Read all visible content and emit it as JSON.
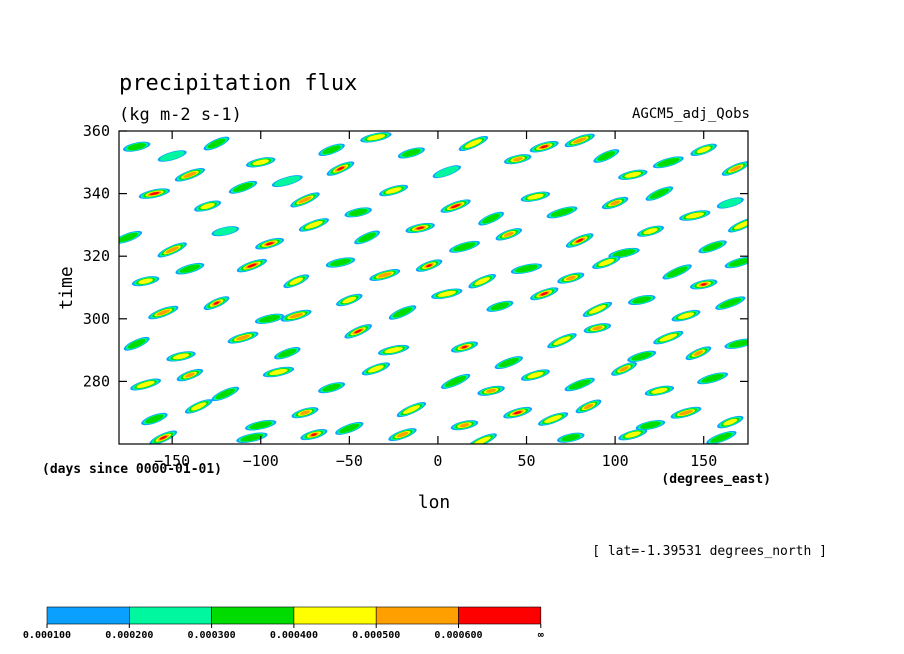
{
  "chart_data": {
    "type": "heatmap",
    "title": "precipitation flux",
    "units": "(kg m-2 s-1)",
    "dataset": "AGCM5_adj_Qobs",
    "xlabel": "lon",
    "ylabel": "time",
    "x_units": "(degrees_east)",
    "y_units": "(days since 0000-01-01)",
    "xlim": [
      -180,
      175
    ],
    "ylim": [
      260,
      360
    ],
    "x_ticks": [
      {
        "value": -150,
        "label": "−150"
      },
      {
        "value": -100,
        "label": "−100"
      },
      {
        "value": -50,
        "label": "−50"
      },
      {
        "value": 0,
        "label": "0"
      },
      {
        "value": 50,
        "label": "50"
      },
      {
        "value": 100,
        "label": "100"
      },
      {
        "value": 150,
        "label": "150"
      }
    ],
    "y_ticks": [
      {
        "value": 280,
        "label": "280"
      },
      {
        "value": 300,
        "label": "300"
      },
      {
        "value": 320,
        "label": "320"
      },
      {
        "value": 340,
        "label": "340"
      },
      {
        "value": 360,
        "label": "360"
      }
    ],
    "annotation": "[ lat=-1.39531 degrees_north ]",
    "levels": [
      {
        "label": "0.000100",
        "color": "#0aa0ff"
      },
      {
        "label": "0.000200",
        "color": "#00f7a0"
      },
      {
        "label": "0.000300",
        "color": "#00dc00"
      },
      {
        "label": "0.000400",
        "color": "#ffff00"
      },
      {
        "label": "0.000500",
        "color": "#ffa000"
      },
      {
        "label": "0.000600",
        "color": "#ff0000"
      },
      {
        "label": "∞",
        "color": ""
      }
    ],
    "blobs": [
      {
        "lon": -170,
        "day": 355,
        "level": 2
      },
      {
        "lon": -150,
        "day": 352,
        "level": 1
      },
      {
        "lon": -140,
        "day": 346,
        "level": 4
      },
      {
        "lon": -125,
        "day": 356,
        "level": 2
      },
      {
        "lon": -100,
        "day": 350,
        "level": 3
      },
      {
        "lon": -85,
        "day": 344,
        "level": 1
      },
      {
        "lon": -60,
        "day": 354,
        "level": 2
      },
      {
        "lon": -55,
        "day": 348,
        "level": 5
      },
      {
        "lon": -35,
        "day": 358,
        "level": 3
      },
      {
        "lon": -15,
        "day": 353,
        "level": 2
      },
      {
        "lon": 5,
        "day": 347,
        "level": 1
      },
      {
        "lon": 20,
        "day": 356,
        "level": 3
      },
      {
        "lon": 45,
        "day": 351,
        "level": 4
      },
      {
        "lon": 60,
        "day": 355,
        "level": 5
      },
      {
        "lon": 80,
        "day": 357,
        "level": 4
      },
      {
        "lon": 95,
        "day": 352,
        "level": 2
      },
      {
        "lon": 110,
        "day": 346,
        "level": 3
      },
      {
        "lon": 130,
        "day": 350,
        "level": 2
      },
      {
        "lon": 150,
        "day": 354,
        "level": 3
      },
      {
        "lon": 168,
        "day": 348,
        "level": 4
      },
      {
        "lon": -160,
        "day": 340,
        "level": 5
      },
      {
        "lon": -130,
        "day": 336,
        "level": 3
      },
      {
        "lon": -110,
        "day": 342,
        "level": 2
      },
      {
        "lon": -75,
        "day": 338,
        "level": 4
      },
      {
        "lon": -45,
        "day": 334,
        "level": 2
      },
      {
        "lon": -25,
        "day": 341,
        "level": 3
      },
      {
        "lon": 10,
        "day": 336,
        "level": 5
      },
      {
        "lon": 30,
        "day": 332,
        "level": 2
      },
      {
        "lon": 55,
        "day": 339,
        "level": 3
      },
      {
        "lon": 70,
        "day": 334,
        "level": 2
      },
      {
        "lon": 100,
        "day": 337,
        "level": 4
      },
      {
        "lon": 125,
        "day": 340,
        "level": 2
      },
      {
        "lon": 145,
        "day": 333,
        "level": 3
      },
      {
        "lon": 165,
        "day": 337,
        "level": 1
      },
      {
        "lon": -175,
        "day": 326,
        "level": 2
      },
      {
        "lon": -150,
        "day": 322,
        "level": 4
      },
      {
        "lon": -120,
        "day": 328,
        "level": 1
      },
      {
        "lon": -95,
        "day": 324,
        "level": 5
      },
      {
        "lon": -70,
        "day": 330,
        "level": 3
      },
      {
        "lon": -40,
        "day": 326,
        "level": 2
      },
      {
        "lon": -10,
        "day": 329,
        "level": 5
      },
      {
        "lon": 15,
        "day": 323,
        "level": 2
      },
      {
        "lon": 40,
        "day": 327,
        "level": 4
      },
      {
        "lon": 80,
        "day": 325,
        "level": 5
      },
      {
        "lon": 105,
        "day": 321,
        "level": 2
      },
      {
        "lon": 120,
        "day": 328,
        "level": 3
      },
      {
        "lon": 155,
        "day": 323,
        "level": 2
      },
      {
        "lon": 172,
        "day": 330,
        "level": 3
      },
      {
        "lon": -165,
        "day": 312,
        "level": 3
      },
      {
        "lon": -140,
        "day": 316,
        "level": 2
      },
      {
        "lon": -105,
        "day": 317,
        "level": 5
      },
      {
        "lon": -80,
        "day": 312,
        "level": 3
      },
      {
        "lon": -55,
        "day": 318,
        "level": 2
      },
      {
        "lon": -30,
        "day": 314,
        "level": 4
      },
      {
        "lon": -5,
        "day": 317,
        "level": 5
      },
      {
        "lon": 25,
        "day": 312,
        "level": 3
      },
      {
        "lon": 50,
        "day": 316,
        "level": 2
      },
      {
        "lon": 75,
        "day": 313,
        "level": 4
      },
      {
        "lon": 95,
        "day": 318,
        "level": 3
      },
      {
        "lon": 135,
        "day": 315,
        "level": 2
      },
      {
        "lon": 150,
        "day": 311,
        "level": 5
      },
      {
        "lon": 170,
        "day": 318,
        "level": 2
      },
      {
        "lon": -155,
        "day": 302,
        "level": 4
      },
      {
        "lon": -125,
        "day": 305,
        "level": 5
      },
      {
        "lon": -95,
        "day": 300,
        "level": 2
      },
      {
        "lon": -80,
        "day": 301,
        "level": 4
      },
      {
        "lon": -50,
        "day": 306,
        "level": 3
      },
      {
        "lon": -20,
        "day": 302,
        "level": 2
      },
      {
        "lon": 5,
        "day": 308,
        "level": 3
      },
      {
        "lon": 35,
        "day": 304,
        "level": 2
      },
      {
        "lon": 60,
        "day": 308,
        "level": 5
      },
      {
        "lon": 90,
        "day": 303,
        "level": 3
      },
      {
        "lon": 115,
        "day": 306,
        "level": 2
      },
      {
        "lon": 140,
        "day": 301,
        "level": 3
      },
      {
        "lon": 165,
        "day": 305,
        "level": 2
      },
      {
        "lon": -170,
        "day": 292,
        "level": 2
      },
      {
        "lon": -145,
        "day": 288,
        "level": 3
      },
      {
        "lon": -110,
        "day": 294,
        "level": 4
      },
      {
        "lon": -85,
        "day": 289,
        "level": 2
      },
      {
        "lon": -45,
        "day": 296,
        "level": 5
      },
      {
        "lon": -25,
        "day": 290,
        "level": 3
      },
      {
        "lon": 15,
        "day": 291,
        "level": 5
      },
      {
        "lon": 40,
        "day": 286,
        "level": 2
      },
      {
        "lon": 70,
        "day": 293,
        "level": 3
      },
      {
        "lon": 90,
        "day": 297,
        "level": 4
      },
      {
        "lon": 115,
        "day": 288,
        "level": 2
      },
      {
        "lon": 130,
        "day": 294,
        "level": 3
      },
      {
        "lon": 147,
        "day": 289,
        "level": 4
      },
      {
        "lon": 170,
        "day": 292,
        "level": 2
      },
      {
        "lon": -165,
        "day": 279,
        "level": 3
      },
      {
        "lon": -140,
        "day": 282,
        "level": 4
      },
      {
        "lon": -120,
        "day": 276,
        "level": 2
      },
      {
        "lon": -90,
        "day": 283,
        "level": 3
      },
      {
        "lon": -60,
        "day": 278,
        "level": 2
      },
      {
        "lon": -35,
        "day": 284,
        "level": 3
      },
      {
        "lon": 10,
        "day": 280,
        "level": 2
      },
      {
        "lon": 30,
        "day": 277,
        "level": 4
      },
      {
        "lon": 55,
        "day": 282,
        "level": 3
      },
      {
        "lon": 80,
        "day": 279,
        "level": 2
      },
      {
        "lon": 105,
        "day": 284,
        "level": 4
      },
      {
        "lon": 125,
        "day": 277,
        "level": 3
      },
      {
        "lon": 155,
        "day": 281,
        "level": 2
      },
      {
        "lon": -160,
        "day": 268,
        "level": 2
      },
      {
        "lon": -135,
        "day": 272,
        "level": 3
      },
      {
        "lon": -100,
        "day": 266,
        "level": 2
      },
      {
        "lon": -75,
        "day": 270,
        "level": 4
      },
      {
        "lon": -50,
        "day": 265,
        "level": 2
      },
      {
        "lon": -15,
        "day": 271,
        "level": 3
      },
      {
        "lon": 15,
        "day": 266,
        "level": 4
      },
      {
        "lon": 45,
        "day": 270,
        "level": 5
      },
      {
        "lon": 65,
        "day": 268,
        "level": 3
      },
      {
        "lon": 85,
        "day": 272,
        "level": 4
      },
      {
        "lon": 120,
        "day": 266,
        "level": 2
      },
      {
        "lon": 140,
        "day": 270,
        "level": 4
      },
      {
        "lon": 165,
        "day": 267,
        "level": 3
      },
      {
        "lon": -155,
        "day": 262,
        "level": 5
      },
      {
        "lon": -105,
        "day": 262,
        "level": 2
      },
      {
        "lon": -70,
        "day": 263,
        "level": 5
      },
      {
        "lon": -20,
        "day": 263,
        "level": 4
      },
      {
        "lon": 25,
        "day": 261,
        "level": 3
      },
      {
        "lon": 75,
        "day": 262,
        "level": 2
      },
      {
        "lon": 110,
        "day": 263,
        "level": 3
      },
      {
        "lon": 160,
        "day": 262,
        "level": 2
      }
    ]
  }
}
